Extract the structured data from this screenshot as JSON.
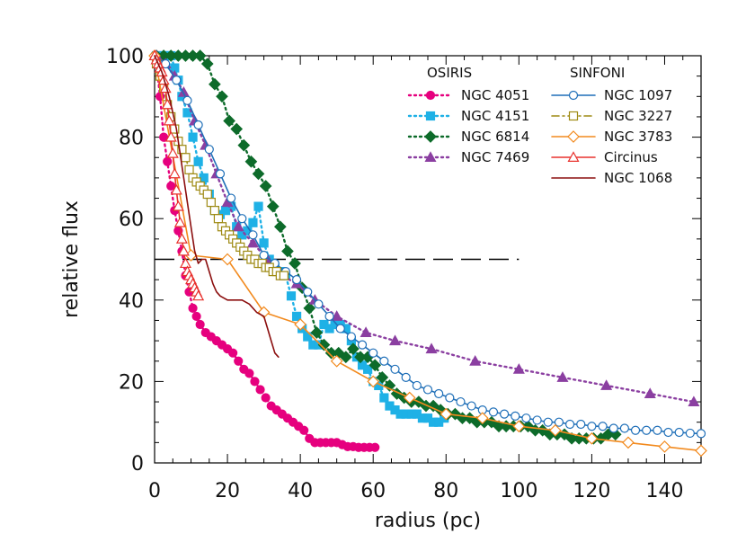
{
  "chart_data": {
    "type": "line",
    "xlabel": "radius (pc)",
    "ylabel": "relative flux",
    "xlim": [
      0,
      150
    ],
    "ylim": [
      0,
      100
    ],
    "xticks": [
      0,
      20,
      40,
      60,
      80,
      100,
      120,
      140
    ],
    "yticks": [
      0,
      20,
      40,
      60,
      80,
      100
    ],
    "grid": false,
    "legend_groups": [
      {
        "title": "OSIRIS",
        "series": [
          "NGC 4051",
          "NGC 4151",
          "NGC 6814",
          "NGC 7469"
        ]
      },
      {
        "title": "SINFONI",
        "series": [
          "NGC 1097",
          "NGC 3227",
          "NGC 3783",
          "Circinus",
          "NGC 1068"
        ]
      }
    ],
    "reference_line": {
      "y": 50,
      "x_range": [
        0,
        100
      ],
      "style": "dashed",
      "color": "#000000"
    },
    "series": [
      {
        "name": "NGC 4051",
        "color": "#e6007e",
        "line": "dotted",
        "marker": "filled-circle",
        "x": [
          0.5,
          1.5,
          2.5,
          3.5,
          4.5,
          5.5,
          6.5,
          7.5,
          8.5,
          9.5,
          10.5,
          11.5,
          12.5,
          14,
          15.5,
          17,
          18.5,
          20,
          21.5,
          23,
          24.5,
          26,
          27.5,
          29,
          30.5,
          32,
          33.5,
          35,
          36.5,
          38,
          39.5,
          41,
          42.5,
          44,
          45.5,
          47,
          48.5,
          50,
          51.5,
          53,
          54.5,
          56,
          57.5,
          59,
          60.5
        ],
        "y": [
          98,
          90,
          80,
          74,
          68,
          62,
          57,
          52,
          46,
          42,
          38,
          36,
          34,
          32,
          31,
          30,
          29,
          28,
          27,
          25,
          23,
          22,
          20,
          18,
          16,
          14,
          13,
          12,
          11,
          10,
          9,
          8,
          6,
          5,
          5,
          5,
          5,
          5,
          4.5,
          4,
          4,
          3.8,
          3.8,
          3.8,
          3.8
        ]
      },
      {
        "name": "NGC 4151",
        "color": "#1fb1e6",
        "line": "dotted",
        "marker": "filled-square",
        "x": [
          0.5,
          1.5,
          2.5,
          3.5,
          4.5,
          5.5,
          6.5,
          7.5,
          9,
          10.5,
          12,
          13.5,
          15,
          16.5,
          18,
          19.5,
          21,
          22.5,
          24,
          25.5,
          27,
          28.5,
          30,
          31.5,
          33,
          34.5,
          36,
          37.5,
          39,
          40.5,
          42,
          43.5,
          45,
          46.5,
          48,
          49.5,
          51,
          52.5,
          54,
          55.5,
          57,
          58.5,
          60,
          61.5,
          63,
          64.5,
          66,
          67.5,
          69,
          70.5,
          72,
          73.5,
          75,
          76.5,
          78,
          79.5
        ],
        "y": [
          100,
          100,
          100,
          100,
          100,
          97,
          94,
          90,
          86,
          80,
          74,
          70,
          66,
          62,
          61,
          62,
          63,
          58,
          56,
          57,
          59,
          63,
          54,
          50,
          48,
          47,
          46,
          41,
          36,
          33,
          31,
          29,
          29,
          34,
          33,
          34,
          34,
          33,
          30,
          26,
          24,
          23,
          20,
          19,
          16,
          14,
          13,
          12,
          12,
          12,
          12,
          11,
          11,
          10,
          10,
          11
        ]
      },
      {
        "name": "NGC 6814",
        "color": "#0d6b2a",
        "line": "dotted",
        "marker": "filled-diamond",
        "x": [
          0.5,
          2.5,
          4.5,
          6.5,
          8.5,
          10.5,
          12.5,
          14.5,
          16.5,
          18.5,
          20.5,
          22.5,
          24.5,
          26.5,
          28.5,
          30.5,
          32.5,
          34.5,
          36.5,
          38.5,
          40.5,
          42.5,
          44.5,
          46.5,
          48.5,
          50.5,
          52.5,
          54.5,
          56.5,
          58.5,
          60.5,
          62.5,
          64.5,
          66.5,
          68.5,
          70.5,
          72.5,
          74.5,
          76.5,
          78.5,
          80.5,
          82.5,
          84.5,
          86.5,
          88.5,
          90.5,
          92.5,
          94.5,
          96.5,
          98.5,
          100.5,
          102.5,
          104.5,
          106.5,
          108.5,
          110.5,
          112.5,
          114.5,
          116.5,
          118.5,
          120.5,
          122.5,
          124.5,
          126.5
        ],
        "y": [
          100,
          100,
          100,
          100,
          100,
          100,
          100,
          98,
          93,
          90,
          84,
          82,
          78,
          74,
          71,
          68,
          63,
          58,
          52,
          49,
          43,
          38,
          32,
          29,
          27,
          27,
          26,
          28,
          26,
          26,
          24,
          21,
          19,
          17,
          16,
          15,
          15,
          14,
          14,
          13,
          12,
          12,
          11,
          11,
          10,
          10,
          10,
          9,
          9,
          9,
          9,
          9,
          8,
          8,
          7,
          7,
          7,
          6,
          6,
          6,
          6,
          6,
          7,
          7
        ]
      },
      {
        "name": "NGC 7469",
        "color": "#8b3fa1",
        "line": "dotted",
        "marker": "filled-triangle",
        "x": [
          0.5,
          3,
          5.5,
          8,
          11,
          14,
          17,
          20,
          23,
          27,
          31,
          35,
          39,
          44,
          50,
          58,
          66,
          76,
          88,
          100,
          112,
          124,
          136,
          148
        ],
        "y": [
          100,
          98,
          95,
          91,
          84,
          78,
          71,
          64,
          58,
          54,
          50,
          46,
          44,
          40,
          36,
          32,
          30,
          28,
          25,
          23,
          21,
          19,
          17,
          15
        ]
      },
      {
        "name": "NGC 1097",
        "color": "#1f6fb8",
        "line": "solid",
        "marker": "open-circle",
        "x": [
          0,
          3,
          6,
          9,
          12,
          15,
          18,
          21,
          24,
          27,
          30,
          33,
          36,
          39,
          42,
          45,
          48,
          51,
          54,
          57,
          60,
          63,
          66,
          69,
          72,
          75,
          78,
          81,
          84,
          87,
          90,
          93,
          96,
          99,
          102,
          105,
          108,
          111,
          114,
          117,
          120,
          123,
          126,
          129,
          132,
          135,
          138,
          141,
          144,
          147,
          150
        ],
        "y": [
          100,
          98,
          94,
          89,
          83,
          77,
          71,
          65,
          60,
          56,
          51,
          49,
          47,
          45,
          42,
          39,
          36,
          33,
          31,
          29,
          27,
          25,
          23,
          21,
          19,
          18,
          17,
          16,
          15,
          14,
          13,
          12.5,
          12,
          11.5,
          11,
          10.5,
          10,
          10,
          9.5,
          9.5,
          9,
          9,
          8.5,
          8.5,
          8,
          8,
          8,
          7.5,
          7.5,
          7.3,
          7.2
        ]
      },
      {
        "name": "NGC 3227",
        "color": "#9e8a13",
        "line": "dashdot",
        "marker": "open-square",
        "x": [
          0.5,
          1.5,
          2.5,
          3.5,
          4.5,
          5.5,
          6.5,
          7.5,
          8.5,
          9.5,
          10.5,
          11.5,
          12.5,
          13.5,
          14.5,
          15.5,
          16.5,
          17.5,
          18.5,
          19.5,
          20.5,
          21.5,
          22.5,
          23.5,
          24.5,
          25.5,
          26.5,
          27.5,
          28.5,
          29.5,
          30.5,
          31.5,
          32.5,
          33.5,
          34.5,
          35.5
        ],
        "y": [
          98,
          95,
          92,
          88,
          85,
          82,
          79,
          77,
          75,
          72,
          70,
          69,
          68,
          67,
          66,
          64,
          62,
          60,
          58,
          57,
          56,
          55,
          54,
          53,
          52,
          51,
          50,
          50,
          49,
          49,
          48,
          48,
          47,
          47,
          46,
          46
        ]
      },
      {
        "name": "NGC 3783",
        "color": "#f28a1e",
        "line": "solid",
        "marker": "open-diamond",
        "x": [
          0,
          10,
          20,
          30,
          40,
          50,
          60,
          70,
          80,
          90,
          100,
          110,
          120,
          130,
          140,
          150
        ],
        "y": [
          100,
          51,
          50,
          37,
          34,
          25,
          20,
          16,
          12,
          11,
          9,
          8,
          6,
          5,
          4,
          3
        ]
      },
      {
        "name": "Circinus",
        "color": "#e8322e",
        "line": "solid",
        "marker": "open-triangle",
        "x": [
          0,
          0.5,
          1,
          1.5,
          2,
          2.5,
          3,
          3.5,
          4,
          4.5,
          5,
          5.5,
          6,
          6.5,
          7,
          7.5,
          8,
          8.5,
          9,
          9.5,
          10,
          10.5,
          11,
          11.5,
          12
        ],
        "y": [
          100,
          99,
          98,
          97,
          96,
          94,
          92,
          88,
          84,
          80,
          76,
          71,
          67,
          63,
          59,
          55,
          52,
          49,
          47,
          46,
          45,
          44,
          43,
          42,
          41
        ]
      },
      {
        "name": "NGC 1068",
        "color": "#8b0e0e",
        "line": "solid",
        "marker": "none",
        "x": [
          0,
          2,
          4,
          6,
          8,
          10,
          11,
          12,
          13,
          14,
          15,
          16,
          17,
          18,
          20,
          22,
          24,
          26,
          28,
          30,
          31,
          32,
          33,
          34
        ],
        "y": [
          100,
          96,
          90,
          82,
          70,
          58,
          52,
          49,
          50,
          50,
          47,
          44,
          42,
          41,
          40,
          40,
          40,
          39,
          37,
          36,
          33,
          30,
          27,
          26
        ]
      }
    ]
  }
}
